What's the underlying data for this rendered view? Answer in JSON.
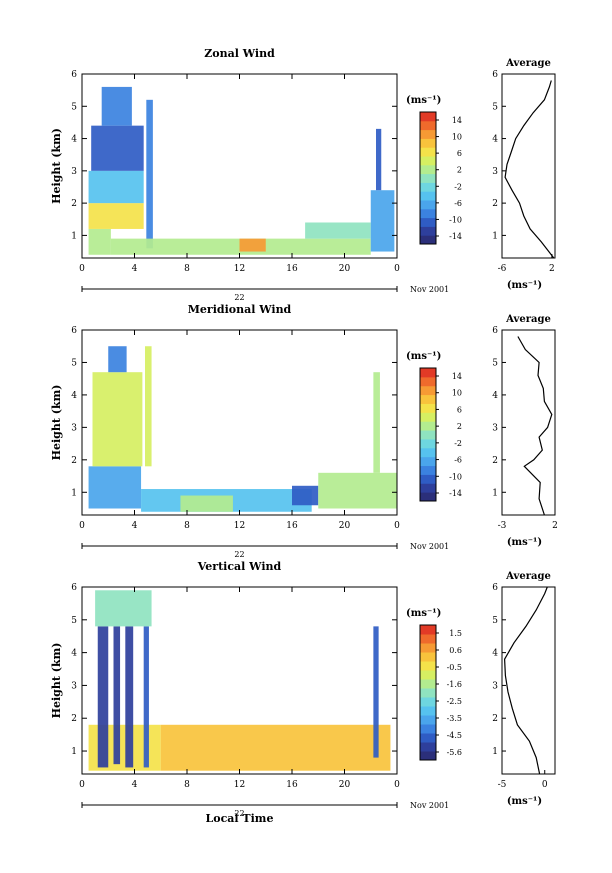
{
  "shared": {
    "date_label": "Nov 2001",
    "date_value": "22",
    "time_axis_label": "Local Time",
    "ylabel": "Height (km)",
    "colorbar_unit": "(ms⁻¹)",
    "avg_title": "Average",
    "avg_xlabel": "(ms⁻¹)",
    "colors": {
      "scale": [
        "#2b2f7a",
        "#2e3f9c",
        "#2f5cc4",
        "#3b82e0",
        "#4aa5ec",
        "#56c2ef",
        "#6ed6e0",
        "#8fe3c0",
        "#b3ec8f",
        "#d6ef62",
        "#f4e24a",
        "#f8c33c",
        "#f69a34",
        "#ef6a2c",
        "#e23a26"
      ],
      "scale_vertical_low": "#d8e04a",
      "scale_vertical_mid": "#f6cf3a"
    }
  },
  "chart_data": [
    {
      "type": "heatmap",
      "title": "Zonal Wind",
      "xlabel": "",
      "ylabel": "Height (km)",
      "xlim": [
        0,
        24
      ],
      "ylim": [
        0.3,
        6
      ],
      "x_ticks": [
        "0",
        "4",
        "8",
        "12",
        "16",
        "20",
        "0"
      ],
      "x_tick_values": [
        0,
        4,
        8,
        12,
        16,
        20,
        24
      ],
      "y_ticks": [
        "1",
        "2",
        "3",
        "4",
        "5",
        "6"
      ],
      "colorbar": {
        "unit": "(ms⁻¹)",
        "ticks": [
          "14",
          "10",
          "6",
          "2",
          "-2",
          "-6",
          "-10",
          "-14"
        ],
        "range": [
          -16,
          16
        ]
      },
      "patches": [
        {
          "x0": 0.5,
          "x1": 2.2,
          "y0": 0.4,
          "y1": 1.2,
          "value": 2
        },
        {
          "x0": 0.5,
          "x1": 4.7,
          "y0": 1.2,
          "y1": 2.0,
          "value": 6
        },
        {
          "x0": 0.5,
          "x1": 4.7,
          "y0": 2.0,
          "y1": 3.0,
          "value": -4
        },
        {
          "x0": 0.7,
          "x1": 4.7,
          "y0": 3.0,
          "y1": 4.4,
          "value": -10
        },
        {
          "x0": 1.5,
          "x1": 3.8,
          "y0": 4.4,
          "y1": 5.6,
          "value": -8
        },
        {
          "x0": 4.9,
          "x1": 5.4,
          "y0": 0.6,
          "y1": 5.2,
          "value": -8
        },
        {
          "x0": 2.2,
          "x1": 22.0,
          "y0": 0.4,
          "y1": 0.9,
          "value": 2
        },
        {
          "x0": 12.0,
          "x1": 14.0,
          "y0": 0.5,
          "y1": 0.9,
          "value": 10
        },
        {
          "x0": 17.0,
          "x1": 22.0,
          "y0": 0.9,
          "y1": 1.4,
          "value": 0
        },
        {
          "x0": 22.0,
          "x1": 23.8,
          "y0": 0.5,
          "y1": 2.4,
          "value": -6
        },
        {
          "x0": 22.4,
          "x1": 22.8,
          "y0": 2.4,
          "y1": 4.3,
          "value": -10
        }
      ],
      "average_profile": {
        "xlim": [
          -6,
          2.5
        ],
        "x_ticks": [
          "-6",
          "2"
        ],
        "x_tick_values": [
          -6,
          2
        ],
        "height": [
          0.3,
          0.8,
          1.2,
          1.6,
          2.0,
          2.4,
          2.8,
          3.2,
          3.6,
          4.0,
          4.4,
          4.8,
          5.2,
          5.6,
          5.8
        ],
        "value": [
          2.3,
          0.3,
          -1.5,
          -2.5,
          -3.2,
          -4.4,
          -5.5,
          -5.2,
          -4.5,
          -3.8,
          -2.5,
          -1.0,
          0.8,
          1.6,
          1.9
        ]
      }
    },
    {
      "type": "heatmap",
      "title": "Meridional Wind",
      "xlabel": "",
      "ylabel": "Height (km)",
      "xlim": [
        0,
        24
      ],
      "ylim": [
        0.3,
        6
      ],
      "x_ticks": [
        "0",
        "4",
        "8",
        "12",
        "16",
        "20",
        "0"
      ],
      "x_tick_values": [
        0,
        4,
        8,
        12,
        16,
        20,
        24
      ],
      "y_ticks": [
        "1",
        "2",
        "3",
        "4",
        "5",
        "6"
      ],
      "colorbar": {
        "unit": "(ms⁻¹)",
        "ticks": [
          "14",
          "10",
          "6",
          "2",
          "-2",
          "-6",
          "-10",
          "-14"
        ],
        "range": [
          -16,
          16
        ]
      },
      "patches": [
        {
          "x0": 0.5,
          "x1": 4.5,
          "y0": 0.5,
          "y1": 1.8,
          "value": -6
        },
        {
          "x0": 0.8,
          "x1": 4.6,
          "y0": 1.8,
          "y1": 4.7,
          "value": 4
        },
        {
          "x0": 2.0,
          "x1": 3.4,
          "y0": 4.7,
          "y1": 5.5,
          "value": -8
        },
        {
          "x0": 4.8,
          "x1": 5.3,
          "y0": 1.8,
          "y1": 5.5,
          "value": 4
        },
        {
          "x0": 4.5,
          "x1": 17.5,
          "y0": 0.4,
          "y1": 1.1,
          "value": -4
        },
        {
          "x0": 7.5,
          "x1": 11.5,
          "y0": 0.4,
          "y1": 0.9,
          "value": 2
        },
        {
          "x0": 16.0,
          "x1": 18.0,
          "y0": 0.6,
          "y1": 1.2,
          "value": -10
        },
        {
          "x0": 18.0,
          "x1": 24.0,
          "y0": 0.5,
          "y1": 1.6,
          "value": 2
        },
        {
          "x0": 22.2,
          "x1": 22.7,
          "y0": 1.6,
          "y1": 4.7,
          "value": 2
        }
      ],
      "average_profile": {
        "xlim": [
          -3,
          2
        ],
        "x_ticks": [
          "-3",
          "2"
        ],
        "x_tick_values": [
          -3,
          2
        ],
        "height": [
          0.3,
          0.8,
          1.3,
          1.8,
          2.0,
          2.3,
          2.7,
          3.0,
          3.4,
          3.8,
          4.2,
          4.6,
          5.0,
          5.4,
          5.8
        ],
        "value": [
          1.0,
          0.5,
          0.6,
          -0.9,
          0.0,
          0.8,
          0.5,
          1.3,
          1.7,
          1.0,
          0.9,
          0.4,
          0.5,
          -0.8,
          -1.5
        ]
      }
    },
    {
      "type": "heatmap",
      "title": "Vertical Wind",
      "xlabel": "Local Time",
      "ylabel": "Height (km)",
      "xlim": [
        0,
        24
      ],
      "ylim": [
        0.3,
        6
      ],
      "x_ticks": [
        "0",
        "4",
        "8",
        "12",
        "16",
        "20",
        "0"
      ],
      "x_tick_values": [
        0,
        4,
        8,
        12,
        16,
        20,
        24
      ],
      "y_ticks": [
        "1",
        "2",
        "3",
        "4",
        "5",
        "6"
      ],
      "colorbar": {
        "unit": "(ms⁻¹)",
        "ticks": [
          "1.5",
          "0.6",
          "-0.5",
          "-1.6",
          "-2.5",
          "-3.5",
          "-4.5",
          "-5.6"
        ],
        "range": [
          -6,
          2
        ]
      },
      "patches": [
        {
          "x0": 0.5,
          "x1": 6.0,
          "y0": 0.4,
          "y1": 1.8,
          "value": -0.2
        },
        {
          "x0": 6.0,
          "x1": 23.5,
          "y0": 0.4,
          "y1": 1.8,
          "value": 0.3
        },
        {
          "x0": 1.2,
          "x1": 2.0,
          "y0": 0.5,
          "y1": 4.8,
          "value": -5.0
        },
        {
          "x0": 2.4,
          "x1": 2.9,
          "y0": 0.6,
          "y1": 4.8,
          "value": -5.2
        },
        {
          "x0": 3.3,
          "x1": 3.9,
          "y0": 0.5,
          "y1": 4.8,
          "value": -5.0
        },
        {
          "x0": 4.7,
          "x1": 5.1,
          "y0": 0.5,
          "y1": 4.8,
          "value": -4.8
        },
        {
          "x0": 1.0,
          "x1": 5.3,
          "y0": 4.8,
          "y1": 5.9,
          "value": -2.0
        },
        {
          "x0": 22.2,
          "x1": 22.6,
          "y0": 0.8,
          "y1": 4.8,
          "value": -4.5
        }
      ],
      "average_profile": {
        "xlim": [
          -5,
          1.2
        ],
        "x_ticks": [
          "-5",
          "0"
        ],
        "x_tick_values": [
          -5,
          0
        ],
        "height": [
          0.3,
          0.8,
          1.3,
          1.8,
          2.3,
          2.8,
          3.3,
          3.8,
          4.3,
          4.8,
          5.3,
          5.8,
          6.0
        ],
        "value": [
          -0.6,
          -1.0,
          -1.8,
          -3.2,
          -3.8,
          -4.3,
          -4.6,
          -4.7,
          -3.6,
          -2.2,
          -1.0,
          0.0,
          0.3
        ]
      }
    }
  ]
}
